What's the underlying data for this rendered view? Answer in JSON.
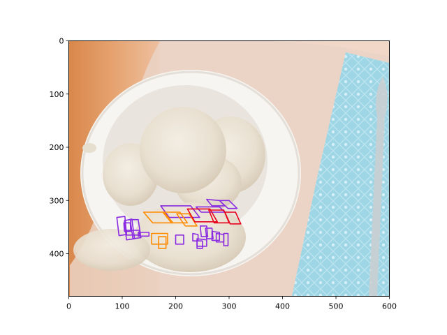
{
  "chart_data": {
    "type": "scatter",
    "title": "",
    "xlabel": "",
    "ylabel": "",
    "xlim": [
      0,
      600
    ],
    "ylim": [
      480,
      0
    ],
    "y_inverted": true,
    "grid": false,
    "x_ticks": [
      0,
      100,
      200,
      300,
      400,
      500,
      600
    ],
    "y_ticks": [
      0,
      100,
      200,
      300,
      400
    ],
    "background_image": "photo of a white bowl with scoops of vanilla ice cream on a peach and wood surface, light-blue patterned napkin and spoon on the right",
    "series": [
      {
        "color": "#8a2be2",
        "boxes": [
          [
            [
              172,
              310
            ],
            [
              228,
              310
            ],
            [
              245,
              332
            ],
            [
              188,
              332
            ]
          ],
          [
            [
              238,
              312
            ],
            [
              282,
              312
            ],
            [
              292,
              322
            ],
            [
              248,
              322
            ]
          ],
          [
            [
              282,
              300
            ],
            [
              300,
              300
            ],
            [
              315,
              315
            ],
            [
              298,
              315
            ]
          ],
          [
            [
              258,
              298
            ],
            [
              282,
              300
            ],
            [
              292,
              310
            ],
            [
              268,
              310
            ]
          ],
          [
            [
              104,
              338
            ],
            [
              118,
              335
            ],
            [
              123,
              372
            ],
            [
              108,
              374
            ]
          ],
          [
            [
              115,
              336
            ],
            [
              130,
              336
            ],
            [
              135,
              370
            ],
            [
              120,
              372
            ]
          ],
          [
            [
              90,
              332
            ],
            [
              105,
              330
            ],
            [
              108,
              364
            ],
            [
              94,
              366
            ]
          ],
          [
            [
              103,
              342
            ],
            [
              115,
              342
            ],
            [
              116,
              358
            ],
            [
              104,
              358
            ]
          ],
          [
            [
              108,
              356
            ],
            [
              132,
              356
            ],
            [
              132,
              365
            ],
            [
              108,
              365
            ]
          ],
          [
            [
              130,
              360
            ],
            [
              150,
              360
            ],
            [
              150,
              367
            ],
            [
              130,
              367
            ]
          ],
          [
            [
              200,
              365
            ],
            [
              215,
              365
            ],
            [
              215,
              382
            ],
            [
              200,
              382
            ]
          ],
          [
            [
              240,
              372
            ],
            [
              258,
              374
            ],
            [
              258,
              386
            ],
            [
              240,
              386
            ]
          ],
          [
            [
              240,
              376
            ],
            [
              250,
              376
            ],
            [
              250,
              390
            ],
            [
              240,
              390
            ]
          ],
          [
            [
              246,
              348
            ],
            [
              258,
              348
            ],
            [
              260,
              368
            ],
            [
              248,
              368
            ]
          ],
          [
            [
              256,
              352
            ],
            [
              268,
              352
            ],
            [
              270,
              372
            ],
            [
              258,
              372
            ]
          ],
          [
            [
              268,
              358
            ],
            [
              282,
              360
            ],
            [
              282,
              375
            ],
            [
              268,
              375
            ]
          ],
          [
            [
              276,
              362
            ],
            [
              290,
              364
            ],
            [
              290,
              378
            ],
            [
              276,
              378
            ]
          ],
          [
            [
              232,
              362
            ],
            [
              242,
              364
            ],
            [
              242,
              376
            ],
            [
              232,
              376
            ]
          ],
          [
            [
              290,
              362
            ],
            [
              298,
              362
            ],
            [
              298,
              385
            ],
            [
              290,
              385
            ]
          ]
        ]
      },
      {
        "color": "#ff8c00",
        "boxes": [
          [
            [
              140,
              322
            ],
            [
              178,
              322
            ],
            [
              195,
              342
            ],
            [
              157,
              342
            ]
          ],
          [
            [
              176,
              322
            ],
            [
              208,
              322
            ],
            [
              222,
              342
            ],
            [
              192,
              342
            ]
          ],
          [
            [
              202,
              325
            ],
            [
              225,
              325
            ],
            [
              240,
              348
            ],
            [
              218,
              348
            ]
          ],
          [
            [
              155,
              362
            ],
            [
              185,
              362
            ],
            [
              185,
              382
            ],
            [
              155,
              382
            ]
          ],
          [
            [
              168,
              368
            ],
            [
              182,
              368
            ],
            [
              182,
              390
            ],
            [
              168,
              390
            ]
          ]
        ]
      },
      {
        "color": "#e8001c",
        "boxes": [
          [
            [
              222,
              316
            ],
            [
              264,
              316
            ],
            [
              278,
              340
            ],
            [
              236,
              340
            ]
          ],
          [
            [
              262,
              318
            ],
            [
              290,
              318
            ],
            [
              300,
              342
            ],
            [
              272,
              342
            ]
          ],
          [
            [
              292,
              322
            ],
            [
              312,
              322
            ],
            [
              322,
              344
            ],
            [
              302,
              344
            ]
          ]
        ]
      }
    ]
  }
}
